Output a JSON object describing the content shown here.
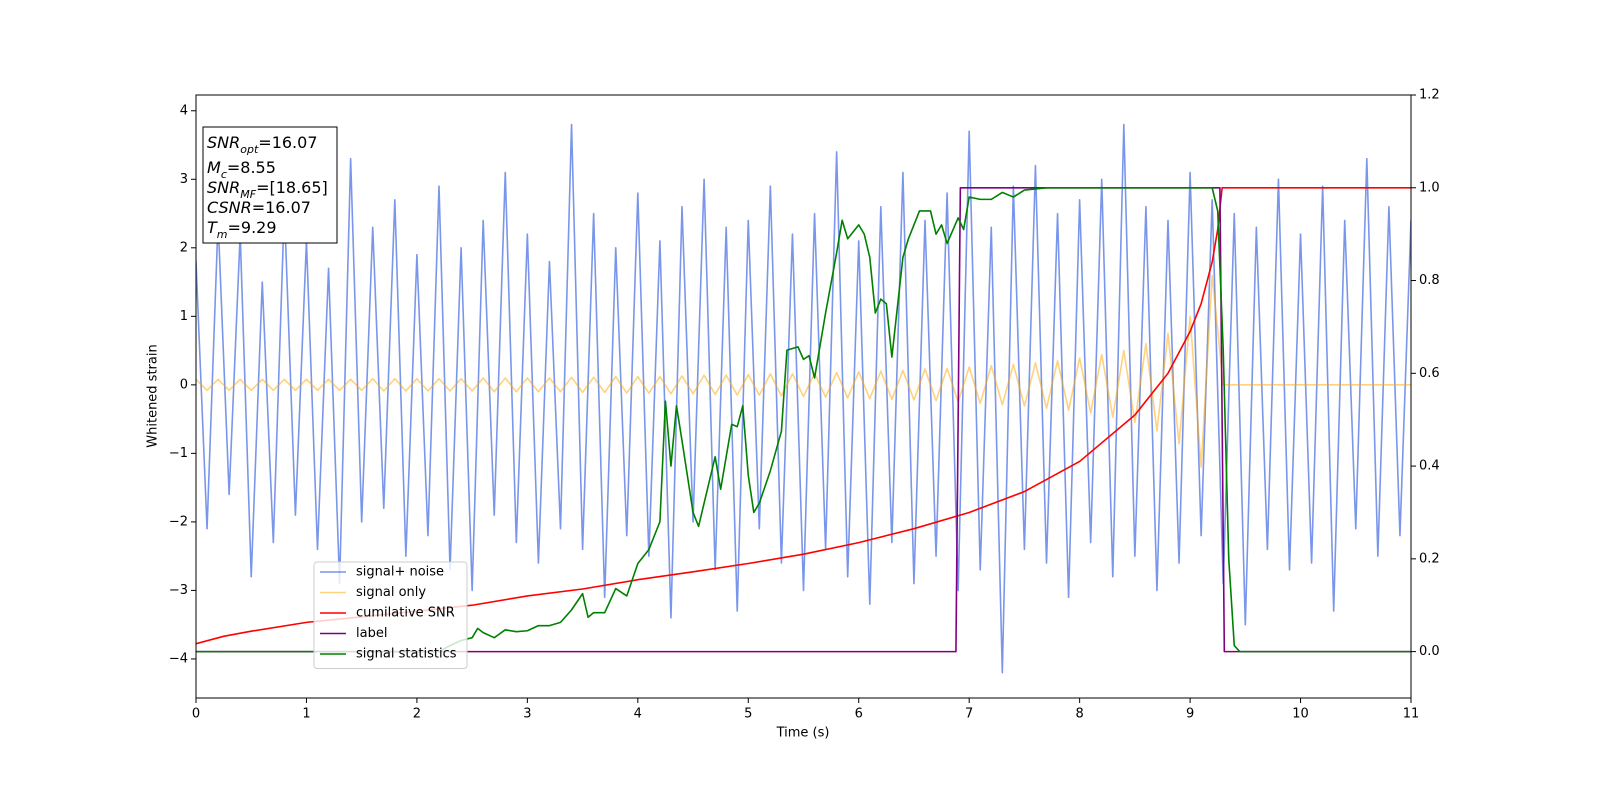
{
  "chart_data": {
    "type": "line",
    "xlabel": "Time (s)",
    "ylabel": "Whitened strain",
    "xlim": [
      0,
      11
    ],
    "xticks": [
      0,
      1,
      2,
      3,
      4,
      5,
      6,
      7,
      8,
      9,
      10,
      11
    ],
    "ylim": [
      -4.57,
      4.23
    ],
    "yticks": [
      {
        "value": -4,
        "label": "−4"
      },
      {
        "value": -3,
        "label": "−3"
      },
      {
        "value": -2,
        "label": "−2"
      },
      {
        "value": -1,
        "label": "−1"
      },
      0,
      1,
      2,
      3,
      4
    ],
    "y2lim": [
      -0.1,
      1.2
    ],
    "y2ticks": [
      {
        "value": 0,
        "label": "0.0"
      },
      0.2,
      0.4,
      0.6,
      0.8,
      {
        "value": 1,
        "label": "1.0"
      },
      1.2
    ],
    "legend": "lower left",
    "annotations": [
      {
        "symbol": "SNR",
        "subscript": "opt",
        "text": "=16.07"
      },
      {
        "symbol": "M",
        "subscript": "c",
        "text": "=8.55"
      },
      {
        "symbol": "SNR",
        "subscript": "MF",
        "text": "=[18.65]"
      },
      {
        "symbol": "CSNR",
        "text": "=16.07"
      },
      {
        "symbol": "T",
        "subscript": "m",
        "text": "=9.29"
      }
    ],
    "x": [
      0,
      0.1,
      0.2,
      0.3,
      0.4,
      0.5,
      0.6,
      0.7,
      0.8,
      0.9,
      1,
      1.1,
      1.2,
      1.3,
      1.4,
      1.5,
      1.6,
      1.7,
      1.8,
      1.9,
      2,
      2.1,
      2.2,
      2.3,
      2.4,
      2.5,
      2.6,
      2.7,
      2.8,
      2.9,
      3,
      3.1,
      3.2,
      3.3,
      3.4,
      3.5,
      3.6,
      3.7,
      3.8,
      3.9,
      4,
      4.1,
      4.2,
      4.3,
      4.4,
      4.5,
      4.6,
      4.7,
      4.8,
      4.9,
      5,
      5.1,
      5.2,
      5.3,
      5.4,
      5.5,
      5.6,
      5.7,
      5.8,
      5.9,
      6,
      6.1,
      6.2,
      6.3,
      6.4,
      6.5,
      6.6,
      6.7,
      6.8,
      6.9,
      7,
      7.1,
      7.2,
      7.3,
      7.4,
      7.5,
      7.6,
      7.7,
      7.8,
      7.9,
      8,
      8.1,
      8.2,
      8.3,
      8.4,
      8.5,
      8.6,
      8.7,
      8.8,
      8.9,
      9,
      9.1,
      9.2,
      9.3,
      9.4,
      9.5,
      9.6,
      9.7,
      9.8,
      9.9,
      10,
      10.1,
      10.2,
      10.3,
      10.4,
      10.5,
      10.6,
      10.7,
      10.8,
      10.9,
      11
    ],
    "series": [
      {
        "name": "signal+ noise",
        "color": "#4169e1",
        "alpha": 0.7,
        "values": [
          1.8,
          -2.1,
          2.4,
          -1.6,
          2.2,
          -2.8,
          1.5,
          -2.3,
          2.6,
          -1.9,
          2.1,
          -2.4,
          1.7,
          -2.9,
          3.3,
          -2.0,
          2.3,
          -1.8,
          2.7,
          -2.5,
          1.9,
          -2.2,
          2.9,
          -2.7,
          2.0,
          -3.0,
          2.4,
          -1.9,
          3.1,
          -2.3,
          2.2,
          -2.6,
          1.8,
          -2.1,
          3.8,
          -2.4,
          2.5,
          -3.1,
          2.0,
          -2.2,
          2.8,
          -2.5,
          2.1,
          -3.4,
          2.6,
          -2.0,
          3.0,
          -2.7,
          2.3,
          -3.3,
          2.4,
          -2.1,
          2.9,
          -2.6,
          2.2,
          -3.0,
          2.5,
          -2.4,
          3.4,
          -2.8,
          2.1,
          -3.2,
          2.6,
          -2.3,
          3.1,
          -2.9,
          2.4,
          -2.5,
          2.8,
          -3.0,
          3.7,
          -2.7,
          2.3,
          -4.2,
          2.9,
          -2.4,
          3.2,
          -2.6,
          2.5,
          -3.1,
          2.7,
          -2.3,
          3.0,
          -2.8,
          3.8,
          -2.5,
          2.6,
          -3.0,
          2.4,
          -2.6,
          3.1,
          -2.2,
          2.7,
          -2.9,
          2.5,
          -3.5,
          2.3,
          -2.4,
          3.0,
          -2.7,
          2.2,
          -2.6,
          2.9,
          -3.3,
          2.4,
          -2.1,
          3.3,
          -2.5,
          2.6,
          -2.2,
          2.4
        ]
      },
      {
        "name": "signal only",
        "color": "#ffa500",
        "alpha": 0.5,
        "values": [
          0.08,
          -0.08,
          0.08,
          -0.08,
          0.08,
          -0.08,
          0.08,
          -0.08,
          0.08,
          -0.08,
          0.08,
          -0.08,
          0.08,
          -0.08,
          0.08,
          -0.08,
          0.09,
          -0.09,
          0.09,
          -0.09,
          0.09,
          -0.09,
          0.09,
          -0.09,
          0.09,
          -0.09,
          0.1,
          -0.1,
          0.1,
          -0.1,
          0.1,
          -0.1,
          0.1,
          -0.1,
          0.11,
          -0.11,
          0.11,
          -0.11,
          0.12,
          -0.12,
          0.12,
          -0.12,
          0.12,
          -0.13,
          0.13,
          -0.13,
          0.14,
          -0.14,
          0.14,
          -0.15,
          0.15,
          -0.15,
          0.16,
          -0.16,
          0.16,
          -0.17,
          0.17,
          -0.18,
          0.18,
          -0.19,
          0.19,
          -0.2,
          0.2,
          -0.21,
          0.21,
          -0.22,
          0.23,
          -0.23,
          0.24,
          -0.25,
          0.26,
          -0.27,
          0.28,
          -0.29,
          0.3,
          -0.31,
          0.32,
          -0.34,
          0.35,
          -0.37,
          0.39,
          -0.41,
          0.44,
          -0.47,
          0.5,
          -0.55,
          0.6,
          -0.67,
          0.75,
          -0.86,
          1.0,
          -1.2,
          1.6,
          0,
          0,
          0,
          0,
          0,
          0,
          0,
          0,
          0,
          0,
          0,
          0,
          0,
          0,
          0,
          0,
          0,
          0
        ]
      },
      {
        "name": "cumilative SNR",
        "color": "#ff0000",
        "axis": "y2",
        "x": [
          0,
          0.25,
          0.5,
          1,
          1.5,
          2,
          2.5,
          3,
          3.5,
          4,
          4.5,
          5,
          5.5,
          6,
          6.5,
          7,
          7.5,
          8,
          8.5,
          8.8,
          9,
          9.1,
          9.2,
          9.25,
          9.29,
          10,
          11
        ],
        "values": [
          0.017,
          0.033,
          0.044,
          0.063,
          0.075,
          0.087,
          0.1,
          0.12,
          0.135,
          0.155,
          0.172,
          0.19,
          0.21,
          0.235,
          0.265,
          0.3,
          0.345,
          0.41,
          0.51,
          0.6,
          0.69,
          0.75,
          0.84,
          0.91,
          1.0,
          1.0,
          1.0
        ]
      },
      {
        "name": "label",
        "color": "#800080",
        "axis": "y2",
        "x": [
          0,
          6.88,
          6.92,
          9.27,
          9.31,
          11
        ],
        "values": [
          0,
          0,
          1,
          1,
          0,
          0
        ]
      },
      {
        "name": "signal statistics",
        "color": "#008000",
        "axis": "y2",
        "x": [
          0,
          2.2,
          2.3,
          2.4,
          2.5,
          2.55,
          2.6,
          2.7,
          2.8,
          2.9,
          3.0,
          3.1,
          3.2,
          3.3,
          3.4,
          3.5,
          3.55,
          3.6,
          3.7,
          3.8,
          3.9,
          4.0,
          4.1,
          4.2,
          4.25,
          4.3,
          4.35,
          4.4,
          4.5,
          4.55,
          4.6,
          4.7,
          4.75,
          4.85,
          4.9,
          4.95,
          5.0,
          5.05,
          5.1,
          5.2,
          5.3,
          5.35,
          5.45,
          5.5,
          5.55,
          5.6,
          5.7,
          5.8,
          5.85,
          5.9,
          6.0,
          6.05,
          6.1,
          6.15,
          6.2,
          6.25,
          6.3,
          6.4,
          6.45,
          6.55,
          6.65,
          6.7,
          6.75,
          6.8,
          6.9,
          6.95,
          7.0,
          7.1,
          7.2,
          7.3,
          7.4,
          7.5,
          7.7,
          8.0,
          8.5,
          9.0,
          9.2,
          9.25,
          9.3,
          9.35,
          9.4,
          9.45,
          11
        ],
        "values": [
          0,
          0,
          0.013,
          0.024,
          0.03,
          0.05,
          0.041,
          0.03,
          0.047,
          0.043,
          0.045,
          0.056,
          0.056,
          0.063,
          0.09,
          0.125,
          0.074,
          0.084,
          0.084,
          0.136,
          0.12,
          0.19,
          0.22,
          0.28,
          0.54,
          0.4,
          0.53,
          0.455,
          0.3,
          0.27,
          0.32,
          0.42,
          0.35,
          0.49,
          0.485,
          0.53,
          0.38,
          0.3,
          0.32,
          0.39,
          0.475,
          0.65,
          0.657,
          0.63,
          0.638,
          0.59,
          0.73,
          0.86,
          0.93,
          0.89,
          0.92,
          0.9,
          0.85,
          0.73,
          0.76,
          0.75,
          0.635,
          0.85,
          0.89,
          0.95,
          0.95,
          0.9,
          0.92,
          0.88,
          0.935,
          0.91,
          0.98,
          0.975,
          0.975,
          0.99,
          0.98,
          0.995,
          1.0,
          1.0,
          1.0,
          1.0,
          1.0,
          0.95,
          0.65,
          0.2,
          0.013,
          0,
          0
        ]
      }
    ]
  }
}
